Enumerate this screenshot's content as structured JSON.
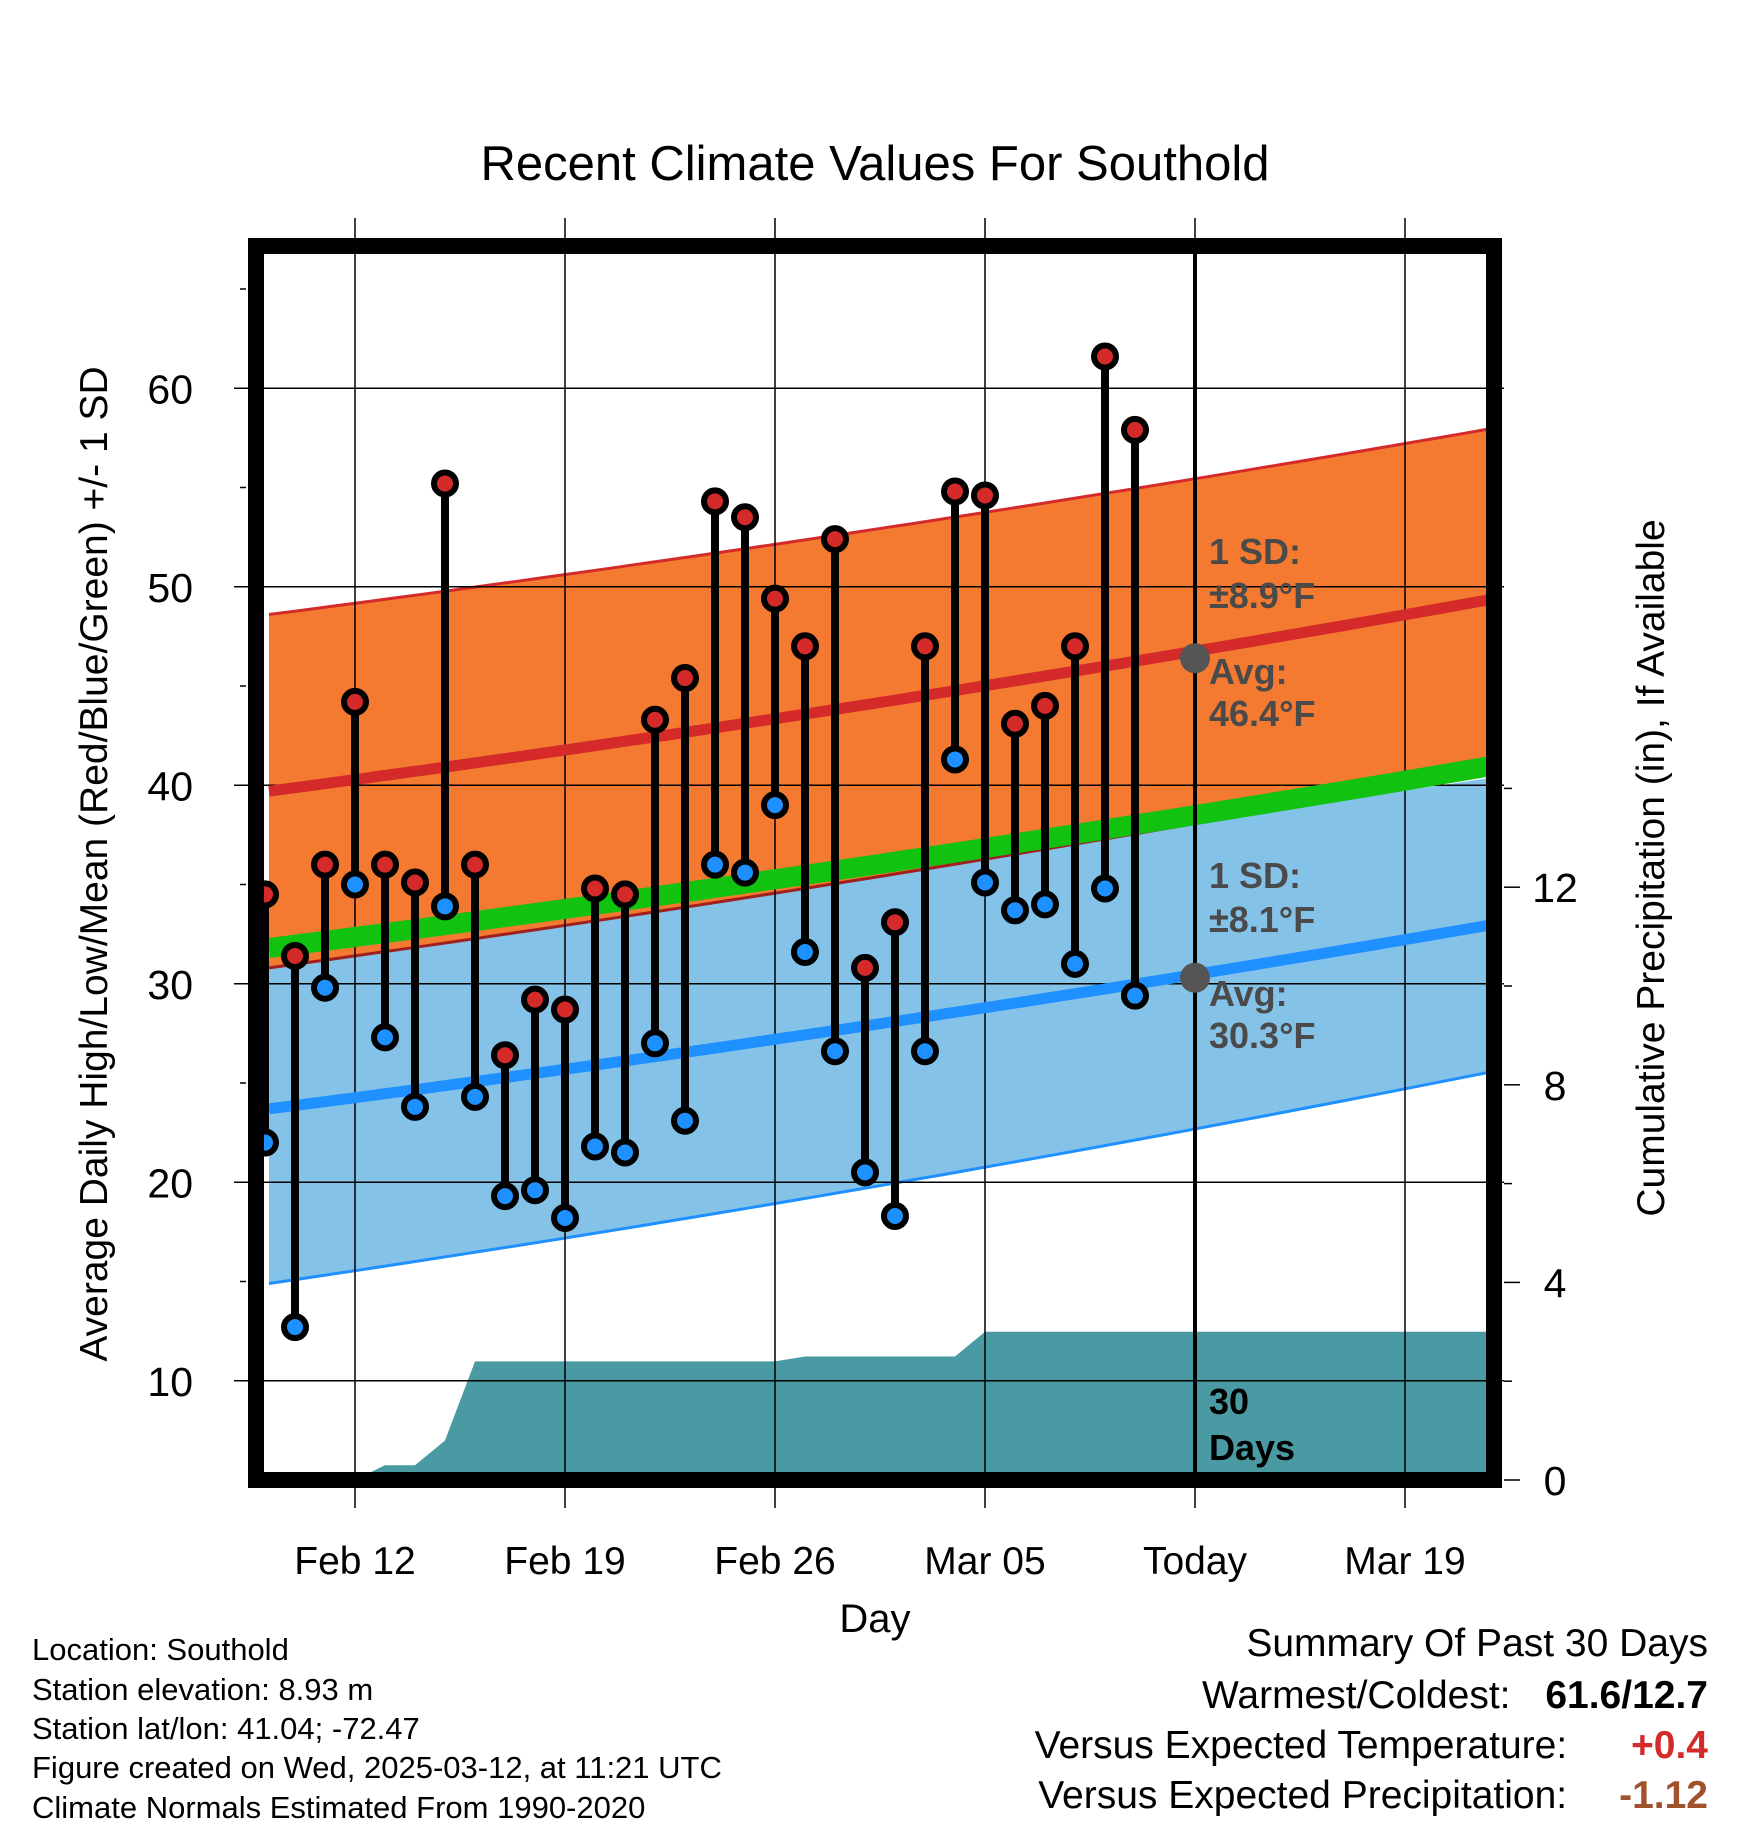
{
  "chart_data": {
    "type": "line",
    "title": "Recent Climate Values For Southold",
    "xlabel": "Day",
    "ylabel": "Average Daily High/Low/Mean (Red/Blue/Green) +/- 1 SD",
    "y2label": "Cumulative Precipitation (in), If Available",
    "ylim": [
      5,
      67
    ],
    "y2lim": [
      0,
      16
    ],
    "x_tick_labels": [
      "Feb 12",
      "Feb 19",
      "Feb 26",
      "Mar 05",
      "Today",
      "Mar 19"
    ],
    "y_ticks": [
      10,
      20,
      30,
      40,
      50,
      60
    ],
    "y2_ticks": [
      0,
      4,
      8,
      12
    ],
    "days": [
      "2025-02-09",
      "2025-02-10",
      "2025-02-11",
      "2025-02-12",
      "2025-02-13",
      "2025-02-14",
      "2025-02-15",
      "2025-02-16",
      "2025-02-17",
      "2025-02-18",
      "2025-02-19",
      "2025-02-20",
      "2025-02-21",
      "2025-02-22",
      "2025-02-23",
      "2025-02-24",
      "2025-02-25",
      "2025-02-26",
      "2025-02-27",
      "2025-02-28",
      "2025-03-01",
      "2025-03-02",
      "2025-03-03",
      "2025-03-04",
      "2025-03-05",
      "2025-03-06",
      "2025-03-07",
      "2025-03-08",
      "2025-03-09",
      "2025-03-10",
      "2025-03-11"
    ],
    "daily_high": [
      34.5,
      31.4,
      36.0,
      44.2,
      36.0,
      35.1,
      55.2,
      36.0,
      26.4,
      29.2,
      28.7,
      34.8,
      34.5,
      43.3,
      45.4,
      54.3,
      53.5,
      49.4,
      47.0,
      52.4,
      30.8,
      33.1,
      47.0,
      54.8,
      54.6,
      43.1,
      44.0,
      47.0,
      61.6,
      57.9,
      null
    ],
    "daily_low": [
      22.0,
      12.7,
      29.8,
      35.0,
      27.3,
      23.8,
      33.9,
      24.3,
      19.3,
      19.6,
      18.2,
      21.8,
      21.5,
      27.0,
      23.1,
      36.0,
      35.6,
      39.0,
      31.6,
      26.6,
      20.5,
      18.3,
      26.6,
      41.3,
      35.1,
      33.7,
      34.0,
      31.0,
      34.8,
      29.4,
      null
    ],
    "normals": {
      "x_end": "2025-03-22",
      "avg_high": [
        39.7,
        49.4
      ],
      "avg_high_sd_upper": [
        48.6,
        58.0
      ],
      "avg_low": [
        23.7,
        33.0
      ],
      "avg_low_sd_lower": [
        14.9,
        25.6
      ],
      "avg_mean": [
        31.8,
        41.0
      ]
    },
    "precip_cumulative": {
      "days": [
        "2025-02-12",
        "2025-02-13",
        "2025-02-14",
        "2025-02-15",
        "2025-02-16",
        "2025-02-26",
        "2025-02-27",
        "2025-03-04",
        "2025-03-05",
        "2025-03-22"
      ],
      "values": [
        0.0,
        0.3,
        0.3,
        0.8,
        2.4,
        2.4,
        2.5,
        2.5,
        3.0,
        3.0
      ]
    },
    "today": "2025-03-12",
    "annotations": {
      "high_sd": "1 SD:",
      "high_sd_value": "±8.9°F",
      "high_avg": "Avg:",
      "high_avg_value": "46.4°F",
      "low_sd": "1 SD:",
      "low_sd_value": "±8.1°F",
      "low_avg": "Avg:",
      "low_avg_value": "30.3°F",
      "period_days": "30",
      "period_unit": "Days"
    },
    "colors": {
      "high_band": "#f37a30",
      "high_line": "#d42a2a",
      "low_band": "#85c2e8",
      "low_line": "#1e90ff",
      "mean_line": "#11c211",
      "precip": "#4a9aa3",
      "high_dot": "#d42a2a",
      "low_dot": "#1e90ff",
      "annotation_text": "#4a4a4a",
      "temp_delta": "#d42a2a",
      "precip_delta": "#a0522d"
    }
  },
  "footer": {
    "location": "Location: Southold",
    "elevation": "Station elevation: 8.93 m",
    "latlon": "Station lat/lon: 41.04; -72.47",
    "created": "Figure created on Wed, 2025-03-12, at 11:21 UTC",
    "normals_period": "Climate Normals Estimated From 1990-2020"
  },
  "summary": {
    "heading": "Summary Of Past 30 Days",
    "warm_cold_label": "Warmest/Coldest:",
    "warm_cold_value": "61.6/12.7",
    "temp_label": "Versus Expected Temperature:",
    "temp_value": "+0.4",
    "precip_label": "Versus Expected Precipitation:",
    "precip_value": "-1.12"
  }
}
